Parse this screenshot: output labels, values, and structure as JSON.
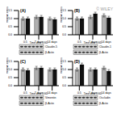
{
  "chart_data": [
    {
      "type": "bar",
      "title": "(A)",
      "x_label": "Time after OGD",
      "y_label": "Relative intensity",
      "categories": [
        "0.5",
        "7 days",
        "14 days"
      ],
      "series": [
        {
          "color": "#b0b0b0",
          "values": [
            1.0,
            1.1,
            1.0
          ],
          "errors": [
            0.1,
            0.1,
            0.1
          ]
        },
        {
          "color": "#111111",
          "values": [
            1.0,
            1.1,
            0.95
          ],
          "errors": [
            0.1,
            0.1,
            0.1
          ]
        }
      ],
      "ylim": [
        0,
        1.5
      ],
      "yticks": [
        {
          "value": 0,
          "label": "0.0"
        },
        {
          "value": 0.5,
          "label": "0.5"
        },
        {
          "value": 1,
          "label": "1.0"
        },
        {
          "value": 1.5,
          "label": "1.5"
        }
      ],
      "blot_labels": [
        "Claudin-5",
        "β-Actin"
      ]
    },
    {
      "type": "bar",
      "title": "(B)",
      "x_label": "Time after OGD",
      "y_label": "Relative intensity",
      "categories": [
        "0.5",
        "7 days",
        "14 days"
      ],
      "series": [
        {
          "color": "#b0b0b0",
          "values": [
            1.0,
            1.1,
            1.2
          ],
          "errors": [
            0.1,
            0.1,
            0.1
          ]
        },
        {
          "color": "#111111",
          "values": [
            1.0,
            1.3,
            1.05
          ],
          "errors": [
            0.1,
            0.1,
            0.1
          ]
        }
      ],
      "ylim": [
        0,
        1.5
      ],
      "yticks": [
        {
          "value": 0,
          "label": "0.0"
        },
        {
          "value": 0.5,
          "label": "0.5"
        },
        {
          "value": 1,
          "label": "1.0"
        },
        {
          "value": 1.5,
          "label": "1.5"
        }
      ],
      "blot_labels": [
        "Claudin-1",
        "β-Actin"
      ]
    },
    {
      "type": "bar",
      "title": "(C)",
      "x_label": "Time after OGD",
      "y_label": "Relative intensity",
      "categories": [
        "0.5",
        "7 days",
        "14 days"
      ],
      "series": [
        {
          "color": "#b0b0b0",
          "values": [
            1.0,
            1.1,
            1.0
          ],
          "errors": [
            0.1,
            0.1,
            0.1
          ]
        },
        {
          "color": "#111111",
          "values": [
            0.95,
            1.1,
            1.0
          ],
          "errors": [
            0.1,
            0.1,
            0.1
          ]
        }
      ],
      "ylim": [
        0,
        1.5
      ],
      "yticks": [
        {
          "value": 0,
          "label": "0.0"
        },
        {
          "value": 0.5,
          "label": "0.5"
        },
        {
          "value": 1,
          "label": "1.0"
        },
        {
          "value": 1.5,
          "label": "1.5"
        }
      ],
      "blot_labels": [
        "Vimentin",
        "β-Actin"
      ]
    },
    {
      "type": "bar",
      "title": "(D)",
      "x_label": "Time after OGD",
      "y_label": "Relative intensity",
      "categories": [
        "0.5",
        "7 days",
        "14 days"
      ],
      "series": [
        {
          "color": "#b0b0b0",
          "values": [
            1.0,
            1.0,
            1.1
          ],
          "errors": [
            0.1,
            0.1,
            0.1
          ]
        },
        {
          "color": "#111111",
          "values": [
            1.3,
            1.0,
            0.9
          ],
          "errors": [
            0.1,
            0.1,
            0.1
          ]
        }
      ],
      "ylim": [
        0,
        1.5
      ],
      "yticks": [
        {
          "value": 0,
          "label": "0.0"
        },
        {
          "value": 0.5,
          "label": "0.5"
        },
        {
          "value": 1,
          "label": "1.0"
        },
        {
          "value": 1.5,
          "label": "1.5"
        }
      ],
      "blot_labels": [
        "Occludin",
        "β-Actin"
      ]
    }
  ],
  "watermark": "© WILEY"
}
